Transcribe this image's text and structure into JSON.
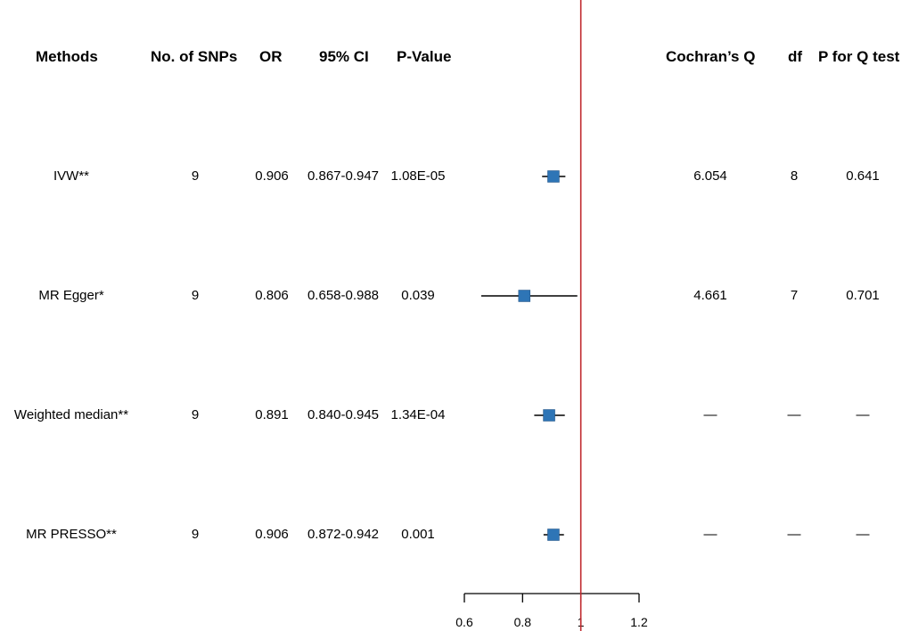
{
  "headers": {
    "methods": "Methods",
    "nsnps": "No. of SNPs",
    "or": "OR",
    "ci": "95% CI",
    "pvalue": "P-Value",
    "cochran": "Cochran’s Q",
    "df": "df",
    "pq": "P for Q test"
  },
  "rows": [
    {
      "method": "IVW**",
      "nsnps": "9",
      "or": "0.906",
      "ci": "0.867-0.947",
      "p": "1.08E-05",
      "q": "6.054",
      "df": "8",
      "pq": "0.641"
    },
    {
      "method": "MR Egger*",
      "nsnps": "9",
      "or": "0.806",
      "ci": "0.658-0.988",
      "p": "0.039",
      "q": "4.661",
      "df": "7",
      "pq": "0.701"
    },
    {
      "method": "Weighted median**",
      "nsnps": "9",
      "or": "0.891",
      "ci": "0.840-0.945",
      "p": "1.34E-04",
      "q": "—",
      "df": "—",
      "pq": "—"
    },
    {
      "method": "MR PRESSO**",
      "nsnps": "9",
      "or": "0.906",
      "ci": "0.872-0.942",
      "p": "0.001",
      "q": "—",
      "df": "—",
      "pq": "—"
    }
  ],
  "chart_data": {
    "type": "forest",
    "reference_line": 1,
    "xlim": [
      0.6,
      1.2
    ],
    "xticks": [
      "0.6",
      "0.8",
      "1",
      "1.2"
    ],
    "ref_color": "#c0282d",
    "marker_color": "#2e75b6",
    "series": [
      {
        "name": "IVW**",
        "estimate": 0.906,
        "lower": 0.867,
        "upper": 0.947
      },
      {
        "name": "MR Egger*",
        "estimate": 0.806,
        "lower": 0.658,
        "upper": 0.988
      },
      {
        "name": "Weighted median**",
        "estimate": 0.891,
        "lower": 0.84,
        "upper": 0.945
      },
      {
        "name": "MR PRESSO**",
        "estimate": 0.906,
        "lower": 0.872,
        "upper": 0.942
      }
    ]
  }
}
